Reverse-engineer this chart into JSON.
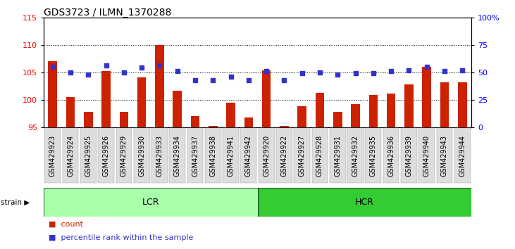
{
  "title": "GDS3723 / ILMN_1370288",
  "samples": [
    "GSM429923",
    "GSM429924",
    "GSM429925",
    "GSM429926",
    "GSM429929",
    "GSM429930",
    "GSM429933",
    "GSM429934",
    "GSM429937",
    "GSM429938",
    "GSM429941",
    "GSM429942",
    "GSM429920",
    "GSM429922",
    "GSM429927",
    "GSM429928",
    "GSM429931",
    "GSM429932",
    "GSM429935",
    "GSM429936",
    "GSM429939",
    "GSM429940",
    "GSM429943",
    "GSM429944"
  ],
  "counts": [
    107.0,
    100.5,
    97.8,
    105.2,
    97.8,
    104.0,
    110.0,
    101.6,
    97.0,
    95.2,
    99.4,
    96.8,
    105.4,
    95.2,
    98.8,
    101.2,
    97.8,
    99.2,
    100.9,
    101.1,
    102.8,
    106.0,
    103.2,
    103.1
  ],
  "percentile_ranks": [
    55,
    50,
    48,
    56,
    50,
    54,
    56,
    51,
    43,
    43,
    46,
    43,
    51,
    43,
    49,
    50,
    48,
    49,
    49,
    51,
    52,
    55,
    51,
    52
  ],
  "lcr_samples": 12,
  "hcr_samples": 12,
  "ylim_left": [
    95,
    115
  ],
  "ylim_right": [
    0,
    100
  ],
  "yticks_left": [
    95,
    100,
    105,
    110,
    115
  ],
  "yticks_right": [
    0,
    25,
    50,
    75,
    100
  ],
  "bar_color": "#CC2200",
  "dot_color": "#3333CC",
  "lcr_color": "#AAFFAA",
  "hcr_color": "#33CC33",
  "lcr_label": "LCR",
  "hcr_label": "HCR",
  "strain_label": "strain",
  "legend_count": "count",
  "legend_percentile": "percentile rank within the sample",
  "background_color": "#FFFFFF",
  "plot_bg": "#FFFFFF",
  "tick_bg": "#DDDDDD",
  "tick_label_fontsize": 7,
  "title_fontsize": 10
}
